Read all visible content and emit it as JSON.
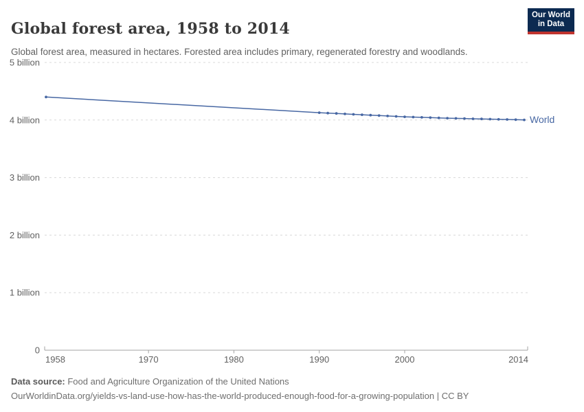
{
  "header": {
    "title": "Global forest area, 1958 to 2014",
    "subtitle": "Global forest area, measured in hectares. Forested area includes primary, regenerated forestry and woodlands."
  },
  "logo": {
    "line1": "Our World",
    "line2": "in Data",
    "background_color": "#0c2a51",
    "bar_color": "#c0342f"
  },
  "chart_data": {
    "type": "line",
    "title": "Global forest area, 1958 to 2014",
    "xlabel": "",
    "ylabel": "hectares",
    "unit": "billion hectares",
    "xlim": [
      1958,
      2014
    ],
    "ylim": [
      0,
      5
    ],
    "grid": "horizontal-dashed",
    "legend_position": "end-of-line-label",
    "yticks": [
      {
        "value": 0,
        "label": "0"
      },
      {
        "value": 1,
        "label": "1 billion"
      },
      {
        "value": 2,
        "label": "2 billion"
      },
      {
        "value": 3,
        "label": "3 billion"
      },
      {
        "value": 4,
        "label": "4 billion"
      },
      {
        "value": 5,
        "label": "5 billion"
      }
    ],
    "xticks": [
      1958,
      1970,
      1980,
      1990,
      2000,
      2014
    ],
    "series": [
      {
        "name": "World",
        "color": "#4767a3",
        "points": [
          [
            1958,
            4.4
          ],
          [
            1990,
            4.128
          ],
          [
            1991,
            4.121
          ],
          [
            1992,
            4.114
          ],
          [
            1993,
            4.106
          ],
          [
            1994,
            4.099
          ],
          [
            1995,
            4.092
          ],
          [
            1996,
            4.085
          ],
          [
            1997,
            4.078
          ],
          [
            1998,
            4.07
          ],
          [
            1999,
            4.063
          ],
          [
            2000,
            4.056
          ],
          [
            2001,
            4.051
          ],
          [
            2002,
            4.046
          ],
          [
            2003,
            4.042
          ],
          [
            2004,
            4.037
          ],
          [
            2005,
            4.032
          ],
          [
            2006,
            4.029
          ],
          [
            2007,
            4.026
          ],
          [
            2008,
            4.022
          ],
          [
            2009,
            4.019
          ],
          [
            2010,
            4.016
          ],
          [
            2011,
            4.012
          ],
          [
            2012,
            4.009
          ],
          [
            2013,
            4.006
          ],
          [
            2014,
            4.002
          ]
        ]
      }
    ],
    "style": {
      "grid_color": "#d8d8d8",
      "axis_color": "#a3a3a3",
      "tick_label_color": "#606060"
    }
  },
  "footer": {
    "data_source_label": "Data source:",
    "data_source_value": " Food and Agriculture Organization of the United Nations",
    "url": "OurWorldinData.org/yields-vs-land-use-how-has-the-world-produced-enough-food-for-a-growing-population",
    "license_separator": " | ",
    "license": "CC BY"
  }
}
